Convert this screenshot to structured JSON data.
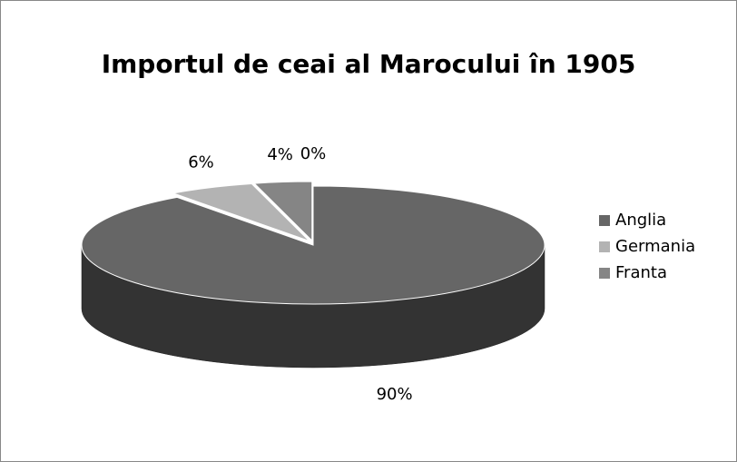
{
  "chart_data": {
    "type": "pie",
    "title": "Importul de ceai al Marocului în 1905",
    "categories": [
      "Anglia",
      "Germania",
      "Franta",
      null
    ],
    "values": [
      90,
      6,
      4,
      0
    ],
    "value_labels": [
      "90%",
      "6%",
      "4%",
      "0%"
    ],
    "colors": [
      "#666666",
      "#b3b3b3",
      "#858585"
    ],
    "legend": "right"
  }
}
